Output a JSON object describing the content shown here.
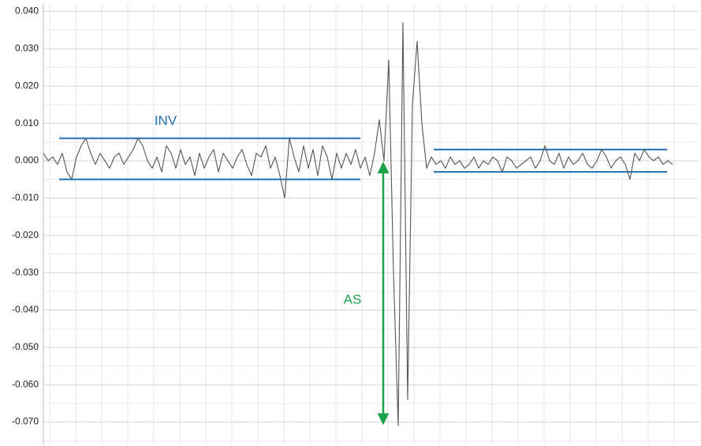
{
  "chart_data": {
    "type": "line",
    "series": [
      {
        "color": "#555555",
        "values": [
          0.002,
          0.0,
          0.001,
          -0.001,
          0.002,
          -0.003,
          -0.005,
          0.001,
          0.004,
          0.006,
          0.002,
          -0.001,
          0.002,
          0.0,
          -0.002,
          0.001,
          0.002,
          -0.001,
          0.001,
          0.003,
          0.006,
          0.004,
          0.0,
          -0.002,
          0.001,
          -0.003,
          0.004,
          0.002,
          -0.002,
          0.003,
          -0.001,
          0.001,
          -0.004,
          0.002,
          -0.002,
          0.001,
          0.003,
          -0.003,
          0.002,
          0.0,
          -0.002,
          0.001,
          0.003,
          -0.001,
          -0.004,
          0.002,
          0.001,
          0.004,
          -0.002,
          0.001,
          -0.004,
          -0.01,
          0.006,
          0.001,
          -0.003,
          0.004,
          -0.002,
          0.003,
          -0.004,
          0.004,
          0.001,
          -0.005,
          0.002,
          -0.002,
          0.002,
          -0.001,
          0.003,
          -0.002,
          0.001,
          -0.004,
          0.002,
          0.011,
          0.0,
          0.027,
          -0.03,
          -0.071,
          0.037,
          -0.064,
          0.015,
          0.032,
          0.01,
          -0.002,
          0.001,
          -0.001,
          0.0,
          -0.002,
          0.001,
          -0.001,
          0.0,
          -0.002,
          -0.001,
          0.001,
          -0.002,
          0.0,
          -0.001,
          0.001,
          0.0,
          -0.003,
          0.001,
          0.0,
          -0.002,
          -0.001,
          0.0,
          0.001,
          -0.002,
          0.0,
          0.004,
          0.0,
          -0.001,
          0.002,
          -0.002,
          0.001,
          -0.001,
          0.0,
          0.002,
          -0.001,
          -0.002,
          0.0,
          0.003,
          0.001,
          -0.002,
          0.0,
          0.001,
          -0.001,
          -0.005,
          0.002,
          0.0,
          0.003,
          0.001,
          0.0,
          0.001,
          -0.001,
          0.0,
          -0.001
        ]
      }
    ],
    "ylim": [
      -0.076,
      0.042
    ],
    "yticks": [
      {
        "value": 0.04,
        "label": "0.040"
      },
      {
        "value": 0.03,
        "label": "0.030"
      },
      {
        "value": 0.02,
        "label": "0.020"
      },
      {
        "value": 0.01,
        "label": "0.010"
      },
      {
        "value": 0,
        "label": "0.000"
      },
      {
        "value": -0.01,
        "label": "-0.010"
      },
      {
        "value": -0.02,
        "label": "-0.020"
      },
      {
        "value": -0.03,
        "label": "-0.030"
      },
      {
        "value": -0.04,
        "label": "-0.040"
      },
      {
        "value": -0.05,
        "label": "-0.050"
      },
      {
        "value": -0.06,
        "label": "-0.060"
      },
      {
        "value": -0.07,
        "label": "-0.070"
      }
    ],
    "grid": true,
    "bands": [
      {
        "upper": 0.006,
        "lower": -0.005,
        "color": "#1f6fb5"
      },
      {
        "upper": 0.003,
        "lower": -0.003,
        "color": "#1f6fb5"
      }
    ],
    "annotations": [
      {
        "text": "INV",
        "color": "#1f6fb5"
      },
      {
        "text": "AS",
        "color": "#1aa34a",
        "from": 0,
        "to": -0.071
      }
    ]
  }
}
